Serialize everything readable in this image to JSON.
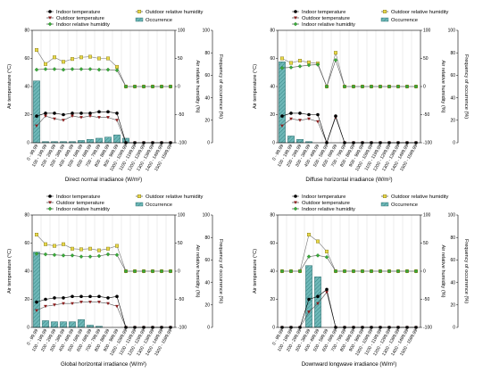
{
  "legend_labels": {
    "indoor_temp": "Indoor temperature",
    "outdoor_temp": "Outdoor temperature",
    "outdoor_rh": "Outdoor relative humidity",
    "indoor_rh": "Indoor relative humidity",
    "occurrence": "Occurrence"
  },
  "axis_labels": {
    "temp": "Air temperature (°C)",
    "rh": "Air relative humidity (%)",
    "freq": "Frequency of occurrence (%)"
  },
  "colors": {
    "indoor_temp": "#000000",
    "outdoor_temp": "#8b1a1a",
    "outdoor_rh": "#e8d84a",
    "indoor_rh": "#3aa83a",
    "occurrence": "#6fb8b8"
  },
  "chart_data": [
    {
      "type": "bar",
      "xlabel": "Direct normal irradiance (W/m²)",
      "categories": [
        "0 - 99.99",
        "100 - 199.99",
        "200 - 299.99",
        "300 - 399.99",
        "400 - 499.99",
        "500 - 599.99",
        "600 - 699.99",
        "700 - 799.99",
        "800 - 899.99",
        "900 - 999.99",
        "1000 - 1099.99",
        "1100 - 1199.99",
        "1200 - 1299.99",
        "1300 - 1399.99",
        "1400 - 1499.99",
        "1500 - 1599.99"
      ],
      "ylim_temp": [
        0,
        80
      ],
      "ylim_rh": [
        -100,
        100
      ],
      "ylim_freq": [
        0,
        100
      ],
      "yticks_temp": [
        0,
        20,
        40,
        60,
        80
      ],
      "yticks_rh": [
        -100,
        -50,
        0,
        50,
        100
      ],
      "yticks_freq": [
        0,
        20,
        40,
        60,
        80,
        100
      ],
      "series": [
        {
          "name": "Indoor temperature",
          "axis": "temp",
          "values": [
            19,
            21,
            21,
            20,
            21,
            21,
            21,
            22,
            22,
            21,
            0,
            0,
            0,
            0,
            0,
            0
          ]
        },
        {
          "name": "Outdoor temperature",
          "axis": "temp",
          "values": [
            12,
            19,
            17,
            16,
            19,
            18,
            19,
            18,
            18,
            16,
            0,
            0,
            0,
            0,
            0,
            0
          ]
        },
        {
          "name": "Outdoor relative humidity",
          "axis": "rh",
          "values": [
            65,
            40,
            52,
            44,
            49,
            52,
            53,
            50,
            50,
            35,
            0,
            0,
            0,
            0,
            0,
            0
          ]
        },
        {
          "name": "Indoor relative humidity",
          "axis": "rh",
          "values": [
            30,
            31,
            31,
            30,
            31,
            31,
            31,
            30,
            30,
            29,
            0,
            0,
            0,
            0,
            0,
            0
          ]
        },
        {
          "name": "Occurrence",
          "axis": "freq",
          "kind": "bar",
          "values": [
            55,
            1,
            1,
            1,
            1,
            2,
            3,
            4,
            5,
            7,
            4,
            0,
            0,
            0,
            0,
            0
          ]
        }
      ]
    },
    {
      "type": "bar",
      "xlabel": "Diffuse horizontal irradiance (W/m²)",
      "categories": [
        "0 - 99.99",
        "100 - 199.99",
        "200 - 299.99",
        "300 - 399.99",
        "400 - 499.99",
        "500 - 599.99",
        "600 - 699.99",
        "700 - 799.99",
        "800 - 899.99",
        "900 - 999.99",
        "1000 - 1099.99",
        "1100 - 1199.99",
        "1200 - 1299.99",
        "1300 - 1399.99",
        "1400 - 1499.99",
        "1500 - 1599.99"
      ],
      "ylim_temp": [
        0,
        80
      ],
      "ylim_rh": [
        -100,
        100
      ],
      "ylim_freq": [
        0,
        100
      ],
      "yticks_temp": [
        0,
        20,
        40,
        60,
        80
      ],
      "yticks_rh": [
        -100,
        -50,
        0,
        50,
        100
      ],
      "yticks_freq": [
        0,
        20,
        40,
        60,
        80,
        100
      ],
      "series": [
        {
          "name": "Indoor temperature",
          "axis": "temp",
          "values": [
            19,
            21,
            21,
            20,
            20,
            0,
            19,
            0,
            0,
            0,
            0,
            0,
            0,
            0,
            0,
            0
          ]
        },
        {
          "name": "Outdoor temperature",
          "axis": "temp",
          "values": [
            12,
            17,
            16,
            17,
            15,
            0,
            18,
            0,
            0,
            0,
            0,
            0,
            0,
            0,
            0,
            0
          ]
        },
        {
          "name": "Outdoor relative humidity",
          "axis": "rh",
          "values": [
            50,
            42,
            46,
            43,
            41,
            0,
            60,
            0,
            0,
            0,
            0,
            0,
            0,
            0,
            0,
            0
          ]
        },
        {
          "name": "Indoor relative humidity",
          "axis": "rh",
          "values": [
            33,
            34,
            36,
            38,
            39,
            0,
            47,
            0,
            0,
            0,
            0,
            0,
            0,
            0,
            0,
            0
          ]
        },
        {
          "name": "Occurrence",
          "axis": "freq",
          "kind": "bar",
          "values": [
            72,
            6,
            3,
            1,
            0,
            0,
            0,
            0,
            0,
            0,
            0,
            0,
            0,
            0,
            0,
            0
          ]
        }
      ]
    },
    {
      "type": "bar",
      "xlabel": "Global horizontal irradiance (W/m²)",
      "categories": [
        "0 - 99.99",
        "100 - 199.99",
        "200 - 299.99",
        "300 - 399.99",
        "400 - 499.99",
        "500 - 599.99",
        "600 - 699.99",
        "700 - 799.99",
        "800 - 899.99",
        "900 - 999.99",
        "1000 - 1099.99",
        "1100 - 1199.99",
        "1200 - 1299.99",
        "1300 - 1399.99",
        "1400 - 1499.99",
        "1500 - 1599.99"
      ],
      "ylim_temp": [
        0,
        80
      ],
      "ylim_rh": [
        -100,
        100
      ],
      "ylim_freq": [
        0,
        100
      ],
      "yticks_temp": [
        0,
        20,
        40,
        60,
        80
      ],
      "yticks_rh": [
        -100,
        -50,
        0,
        50,
        100
      ],
      "yticks_freq": [
        0,
        20,
        40,
        60,
        80,
        100
      ],
      "series": [
        {
          "name": "Indoor temperature",
          "axis": "temp",
          "values": [
            18,
            20,
            21,
            21,
            22,
            22,
            22,
            22,
            21,
            22,
            0,
            0,
            0,
            0,
            0,
            0
          ]
        },
        {
          "name": "Outdoor temperature",
          "axis": "temp",
          "values": [
            12,
            15,
            16,
            17,
            17,
            18,
            18,
            18,
            17,
            15,
            0,
            0,
            0,
            0,
            0,
            0
          ]
        },
        {
          "name": "Outdoor relative humidity",
          "axis": "rh",
          "values": [
            65,
            48,
            45,
            48,
            40,
            39,
            40,
            37,
            40,
            45,
            0,
            0,
            0,
            0,
            0,
            0
          ]
        },
        {
          "name": "Indoor relative humidity",
          "axis": "rh",
          "values": [
            31,
            30,
            29,
            28,
            28,
            26,
            26,
            27,
            30,
            29,
            0,
            0,
            0,
            0,
            0,
            0
          ]
        },
        {
          "name": "Occurrence",
          "axis": "freq",
          "kind": "bar",
          "values": [
            67,
            6,
            5,
            5,
            5,
            7,
            2,
            1,
            0,
            0,
            0,
            0,
            0,
            0,
            0,
            0
          ]
        }
      ]
    },
    {
      "type": "bar",
      "xlabel": "Downward longwave irradiance (W/m²)",
      "categories": [
        "0 - 99.99",
        "100 - 199.99",
        "200 - 299.99",
        "300 - 399.99",
        "400 - 499.99",
        "500 - 599.99",
        "600 - 699.99",
        "700 - 799.99",
        "800 - 899.99",
        "900 - 999.99",
        "1000 - 1099.99",
        "1100 - 1199.99",
        "1200 - 1299.99",
        "1300 - 1399.99",
        "1400 - 1499.99",
        "1500 - 1599.99"
      ],
      "ylim_temp": [
        0,
        80
      ],
      "ylim_rh": [
        -100,
        100
      ],
      "ylim_freq": [
        0,
        100
      ],
      "yticks_temp": [
        0,
        20,
        40,
        60,
        80
      ],
      "yticks_rh": [
        -100,
        -50,
        0,
        50,
        100
      ],
      "yticks_freq": [
        0,
        20,
        40,
        60,
        80,
        100
      ],
      "series": [
        {
          "name": "Indoor temperature",
          "axis": "temp",
          "values": [
            0,
            0,
            0,
            20,
            22,
            27,
            0,
            0,
            0,
            0,
            0,
            0,
            0,
            0,
            0,
            0
          ]
        },
        {
          "name": "Outdoor temperature",
          "axis": "temp",
          "values": [
            0,
            0,
            0,
            11,
            17,
            25,
            0,
            0,
            0,
            0,
            0,
            0,
            0,
            0,
            0,
            0
          ]
        },
        {
          "name": "Outdoor relative humidity",
          "axis": "rh",
          "values": [
            0,
            0,
            0,
            65,
            53,
            35,
            0,
            0,
            0,
            0,
            0,
            0,
            0,
            0,
            0,
            0
          ]
        },
        {
          "name": "Indoor relative humidity",
          "axis": "rh",
          "values": [
            0,
            0,
            0,
            26,
            28,
            25,
            0,
            0,
            0,
            0,
            0,
            0,
            0,
            0,
            0,
            0
          ]
        },
        {
          "name": "Occurrence",
          "axis": "freq",
          "kind": "bar",
          "values": [
            0,
            0,
            0,
            55,
            45,
            0,
            0,
            0,
            0,
            0,
            0,
            0,
            0,
            0,
            0,
            0
          ]
        }
      ]
    }
  ]
}
